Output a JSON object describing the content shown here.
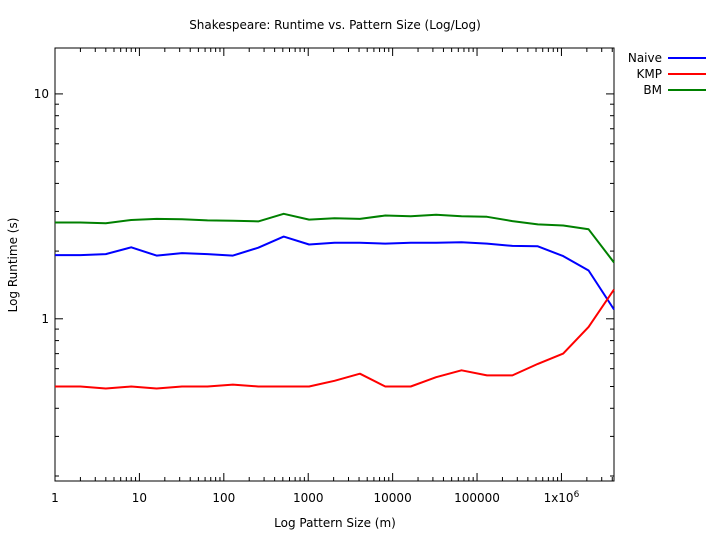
{
  "chart_data": {
    "type": "line",
    "title": "Shakespeare: Runtime vs. Pattern Size (Log/Log)",
    "xlabel": "Log Pattern Size (m)",
    "ylabel": "Log Runtime (s)",
    "xscale": "log",
    "yscale": "log",
    "xlim": [
      1,
      4194304
    ],
    "ylim": [
      0.19,
      16
    ],
    "grid": false,
    "legend": "top-right (outside plot)",
    "x_tick_labels": [
      {
        "value": 1,
        "label": "1"
      },
      {
        "value": 10,
        "label": "10"
      },
      {
        "value": 100,
        "label": "100"
      },
      {
        "value": 1000,
        "label": "1000"
      },
      {
        "value": 10000,
        "label": "10000"
      },
      {
        "value": 100000,
        "label": "100000"
      },
      {
        "value": 1000000,
        "label": "1x10",
        "sup": "6"
      }
    ],
    "y_tick_labels": [
      {
        "value": 1,
        "label": "1"
      },
      {
        "value": 10,
        "label": "10"
      }
    ],
    "x": [
      1,
      2,
      4,
      8,
      16,
      32,
      64,
      128,
      256,
      512,
      1024,
      2048,
      4096,
      8192,
      16384,
      32768,
      65536,
      131072,
      262144,
      524288,
      1048576,
      2097152,
      4194304
    ],
    "series": [
      {
        "name": "Naive",
        "color": "#0000ff",
        "values": [
          1.92,
          1.92,
          1.94,
          2.08,
          1.91,
          1.96,
          1.94,
          1.91,
          2.07,
          2.32,
          2.14,
          2.18,
          2.18,
          2.16,
          2.18,
          2.18,
          2.19,
          2.16,
          2.11,
          2.1,
          1.9,
          1.64,
          1.1
        ]
      },
      {
        "name": "KMP",
        "color": "#ff0000",
        "values": [
          0.5,
          0.5,
          0.49,
          0.5,
          0.49,
          0.5,
          0.5,
          0.51,
          0.5,
          0.5,
          0.5,
          0.53,
          0.57,
          0.5,
          0.5,
          0.55,
          0.59,
          0.56,
          0.56,
          0.63,
          0.7,
          0.92,
          1.35
        ]
      },
      {
        "name": "BM",
        "color": "#008000",
        "values": [
          2.68,
          2.68,
          2.66,
          2.75,
          2.78,
          2.77,
          2.74,
          2.73,
          2.71,
          2.93,
          2.76,
          2.8,
          2.78,
          2.88,
          2.86,
          2.9,
          2.86,
          2.84,
          2.72,
          2.63,
          2.6,
          2.5,
          1.78
        ]
      }
    ]
  }
}
